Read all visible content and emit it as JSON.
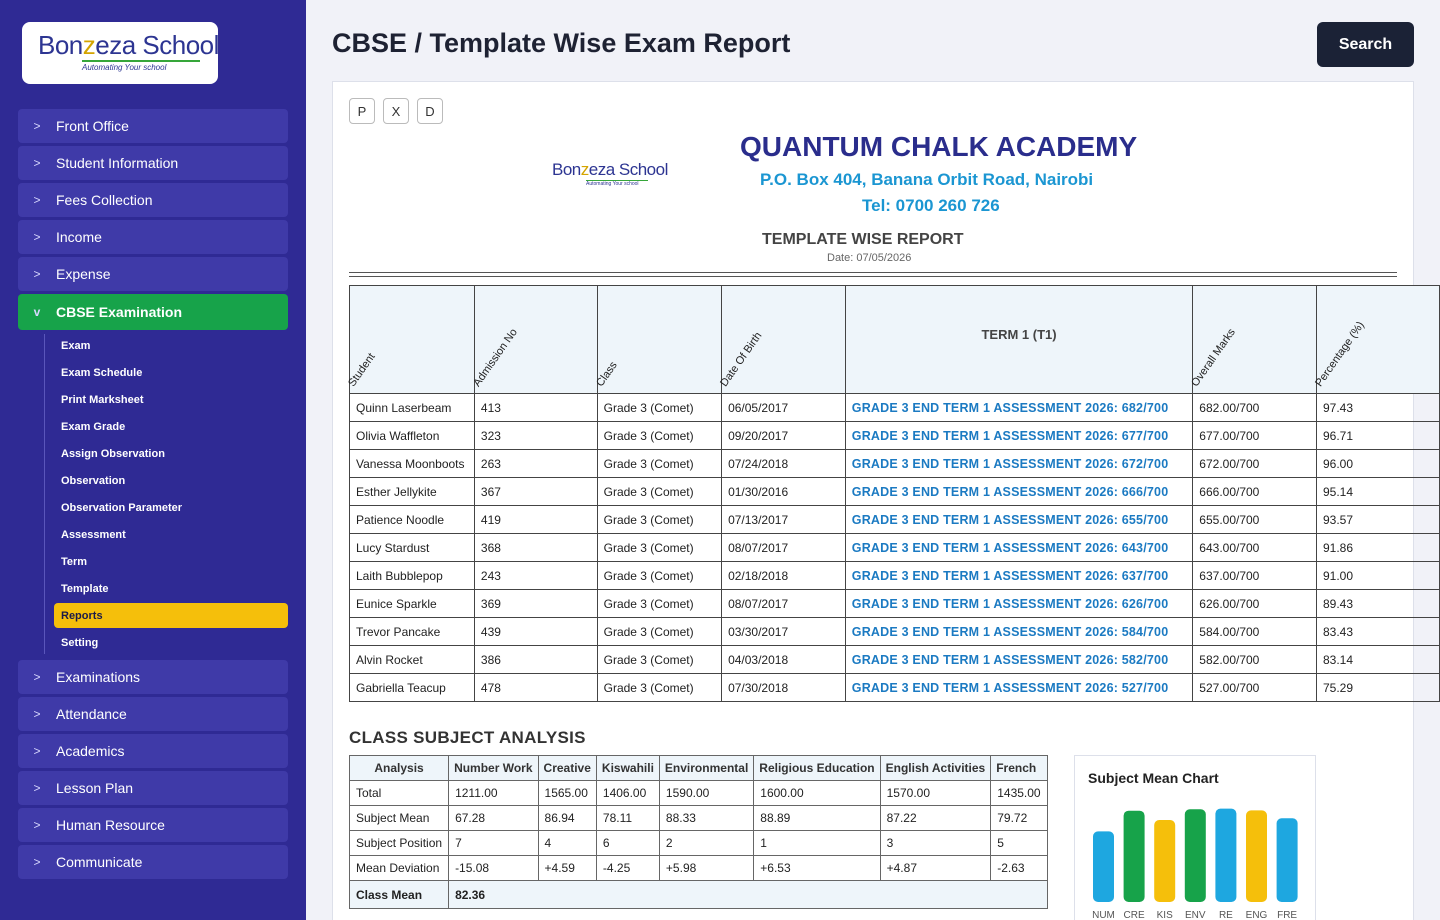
{
  "brand": {
    "logo_main_a": "Bon",
    "logo_main_z": "z",
    "logo_main_b": "eza School",
    "logo_tagline": "Automating Your school"
  },
  "sidebar": {
    "items_top": [
      {
        "label": "Front Office"
      },
      {
        "label": "Student Information"
      },
      {
        "label": "Fees Collection"
      },
      {
        "label": "Income"
      },
      {
        "label": "Expense"
      }
    ],
    "active_item": {
      "label": "CBSE Examination",
      "chevron": "v"
    },
    "chevron": ">",
    "sub_items": [
      {
        "label": "Exam"
      },
      {
        "label": "Exam Schedule"
      },
      {
        "label": "Print Marksheet"
      },
      {
        "label": "Exam Grade"
      },
      {
        "label": "Assign Observation"
      },
      {
        "label": "Observation"
      },
      {
        "label": "Observation Parameter"
      },
      {
        "label": "Assessment"
      },
      {
        "label": "Term"
      },
      {
        "label": "Template"
      },
      {
        "label": "Reports",
        "active": true
      },
      {
        "label": "Setting"
      }
    ],
    "items_bottom": [
      {
        "label": "Examinations"
      },
      {
        "label": "Attendance"
      },
      {
        "label": "Academics"
      },
      {
        "label": "Lesson Plan"
      },
      {
        "label": "Human Resource"
      },
      {
        "label": "Communicate"
      }
    ]
  },
  "header": {
    "title": "CBSE / Template Wise Exam Report",
    "search_label": "Search"
  },
  "toolbar": {
    "print": "P",
    "excel": "X",
    "download": "D"
  },
  "report": {
    "school_name": "QUANTUM CHALK ACADEMY",
    "address": "P.O. Box 404, Banana Orbit Road, Nairobi",
    "tel": "Tel: 0700 260 726",
    "title": "TEMPLATE WISE REPORT",
    "date": "Date: 07/05/2026",
    "columns": [
      "Student",
      "Admission No",
      "Class",
      "Date Of Birth",
      "TERM 1 (T1)",
      "Overall Marks",
      "Percentage (%)"
    ],
    "rows": [
      [
        "Quinn Laserbeam",
        "413",
        "Grade 3 (Comet)",
        "06/05/2017",
        "GRADE 3 END TERM 1 ASSESSMENT 2026: 682/700",
        "682.00/700",
        "97.43"
      ],
      [
        "Olivia Waffleton",
        "323",
        "Grade 3 (Comet)",
        "09/20/2017",
        "GRADE 3 END TERM 1 ASSESSMENT 2026: 677/700",
        "677.00/700",
        "96.71"
      ],
      [
        "Vanessa Moonboots",
        "263",
        "Grade 3 (Comet)",
        "07/24/2018",
        "GRADE 3 END TERM 1 ASSESSMENT 2026: 672/700",
        "672.00/700",
        "96.00"
      ],
      [
        "Esther Jellykite",
        "367",
        "Grade 3 (Comet)",
        "01/30/2016",
        "GRADE 3 END TERM 1 ASSESSMENT 2026: 666/700",
        "666.00/700",
        "95.14"
      ],
      [
        "Patience Noodle",
        "419",
        "Grade 3 (Comet)",
        "07/13/2017",
        "GRADE 3 END TERM 1 ASSESSMENT 2026: 655/700",
        "655.00/700",
        "93.57"
      ],
      [
        "Lucy Stardust",
        "368",
        "Grade 3 (Comet)",
        "08/07/2017",
        "GRADE 3 END TERM 1 ASSESSMENT 2026: 643/700",
        "643.00/700",
        "91.86"
      ],
      [
        "Laith Bubblepop",
        "243",
        "Grade 3 (Comet)",
        "02/18/2018",
        "GRADE 3 END TERM 1 ASSESSMENT 2026: 637/700",
        "637.00/700",
        "91.00"
      ],
      [
        "Eunice Sparkle",
        "369",
        "Grade 3 (Comet)",
        "08/07/2017",
        "GRADE 3 END TERM 1 ASSESSMENT 2026: 626/700",
        "626.00/700",
        "89.43"
      ],
      [
        "Trevor Pancake",
        "439",
        "Grade 3 (Comet)",
        "03/30/2017",
        "GRADE 3 END TERM 1 ASSESSMENT 2026: 584/700",
        "584.00/700",
        "83.43"
      ],
      [
        "Alvin Rocket",
        "386",
        "Grade 3 (Comet)",
        "04/03/2018",
        "GRADE 3 END TERM 1 ASSESSMENT 2026: 582/700",
        "582.00/700",
        "83.14"
      ],
      [
        "Gabriella Teacup",
        "478",
        "Grade 3 (Comet)",
        "07/30/2018",
        "GRADE 3 END TERM 1 ASSESSMENT 2026: 527/700",
        "527.00/700",
        "75.29"
      ]
    ]
  },
  "analysis": {
    "title": "CLASS SUBJECT ANALYSIS",
    "headers": [
      "Analysis",
      "Number Work",
      "Creative",
      "Kiswahili",
      "Environmental",
      "Religious Education",
      "English Activities",
      "French"
    ],
    "rows": [
      [
        "Total",
        "1211.00",
        "1565.00",
        "1406.00",
        "1590.00",
        "1600.00",
        "1570.00",
        "1435.00"
      ],
      [
        "Subject Mean",
        "67.28",
        "86.94",
        "78.11",
        "88.33",
        "88.89",
        "87.22",
        "79.72"
      ],
      [
        "Subject Position",
        "7",
        "4",
        "6",
        "2",
        "1",
        "3",
        "5"
      ],
      [
        "Mean Deviation",
        "-15.08",
        "+4.59",
        "-4.25",
        "+5.98",
        "+6.53",
        "+4.87",
        "-2.63"
      ]
    ],
    "class_mean_label": "Class Mean",
    "class_mean_value": "82.36"
  },
  "chart_data": {
    "type": "bar",
    "title": "Subject Mean Chart",
    "categories": [
      "NUM",
      "CRE",
      "KIS",
      "ENV",
      "RE",
      "ENG",
      "FRE"
    ],
    "values": [
      67.28,
      86.94,
      78.11,
      88.33,
      88.89,
      87.22,
      79.72
    ],
    "colors": [
      "#1ea7e0",
      "#17a34a",
      "#f5bf0b",
      "#17a34a",
      "#1ea7e0",
      "#f5bf0b",
      "#1ea7e0"
    ],
    "ylim": [
      0,
      100
    ]
  },
  "colors": {
    "sidebar": "#2f2a94",
    "active": "#17a34a",
    "highlight": "#f5bf0b",
    "link": "#1b7ac2"
  }
}
